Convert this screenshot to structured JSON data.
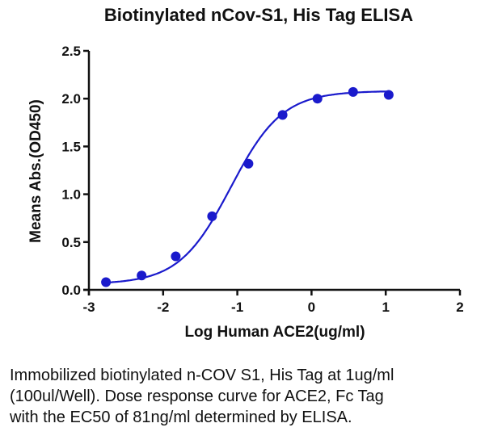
{
  "chart_data": {
    "type": "scatter",
    "title": "Biotinylated nCov-S1, His Tag ELISA",
    "xlabel": "Log Human ACE2(ug/ml)",
    "ylabel": "Means Abs.(OD450)",
    "xlim": [
      -3,
      2
    ],
    "ylim": [
      0,
      2.5
    ],
    "xticks": [
      "-3",
      "-2",
      "-1",
      "0",
      "1",
      "2"
    ],
    "yticks": [
      "0.0",
      "0.5",
      "1.0",
      "1.5",
      "2.0",
      "2.5"
    ],
    "grid": false,
    "legend": null,
    "series": [
      {
        "name": "ACE2, Fc Tag",
        "color": "#1a1acc",
        "fit": "4PL sigmoidal dose-response",
        "x": [
          -2.77,
          -2.29,
          -1.83,
          -1.34,
          -0.85,
          -0.39,
          0.08,
          0.56,
          1.04
        ],
        "y": [
          0.08,
          0.15,
          0.35,
          0.77,
          1.32,
          1.83,
          2.0,
          2.07,
          2.04
        ]
      }
    ],
    "annotations": []
  },
  "caption": {
    "lines": [
      "Immobilized biotinylated n-COV S1, His Tag at 1ug/ml",
      "(100ul/Well). Dose response curve for ACE2, Fc Tag",
      "with the EC50 of 81ng/ml determined by ELISA."
    ]
  }
}
